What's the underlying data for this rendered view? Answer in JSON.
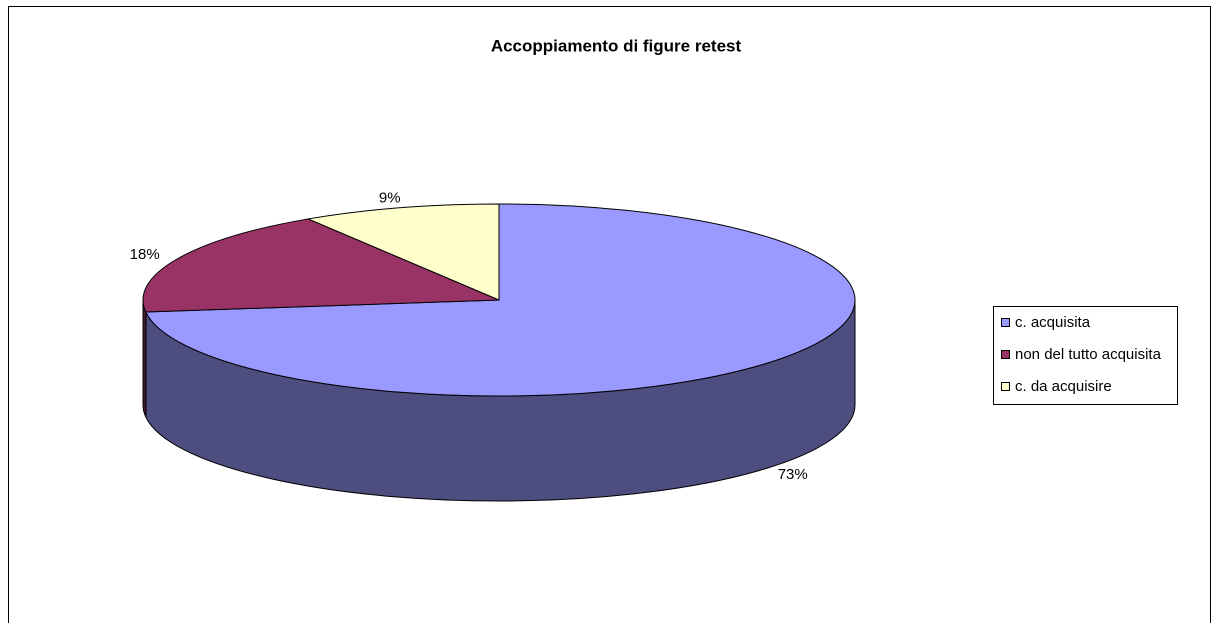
{
  "chart_data": {
    "type": "pie",
    "title": "Accoppiamento di figure retest",
    "categories": [
      "c. acquisita",
      "non del tutto acquisita",
      "c. da acquisire"
    ],
    "values": [
      73,
      18,
      9
    ],
    "value_labels": [
      "73%",
      "18%",
      "9%"
    ],
    "colors": [
      "#9999ff",
      "#993366",
      "#ffffcc"
    ],
    "legend": "right"
  }
}
